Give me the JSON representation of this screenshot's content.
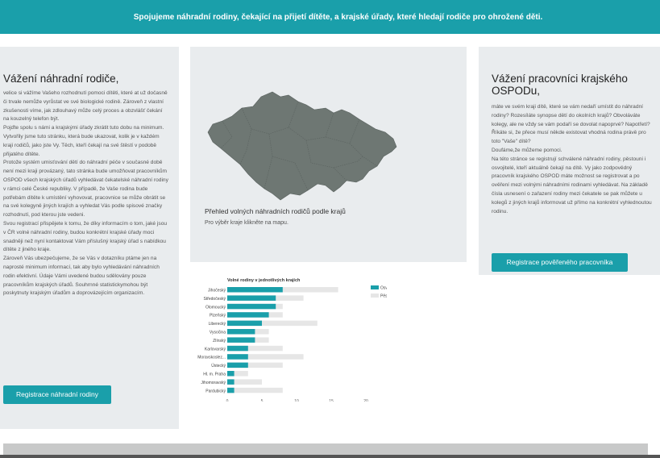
{
  "banner": {
    "text": "Spojujeme náhradní rodiny, čekající na přijetí dítěte, a krajské úřady, které hledají rodiče pro ohrožené děti."
  },
  "parents": {
    "title": "Vážení náhradní rodiče,",
    "paragraphs": [
      "velice si vážíme Vašeho rozhodnutí pomoci dítěti, které at už dočasně či trvale nemůže vyrůstat ve své biologické rodině. Zároveň z vlastní zkušenosti víme, jak zdlouhavý může celý proces a obzvlášť čekání na kouzelný telefon být.",
      "Pojďte spolu s námi a krajskými úřady zkrátit tuto dobu na minimum.",
      "Vytvořily jsme tuto stránku, která bude ukazovat, kolik je v každém kraji rodičů, jako jste Vy. Těch, kteří čekají na své štěstí v podobě přijatého dítěte.",
      "Protože systém umisťování dětí do náhradní péče v současné době není mezi kraji provázaný, tato stránka bude umožňovat pracovníkům OSPOD všech krajských úřadů vyhledávat čekatelské náhradní rodiny v rámci celé České republiky. V případě, že Vaše rodina bude potřebám dítěte k umístění vyhovovat, pracovnice se může obrátit se na své kolegyně jiných krajích a vyhledat Vás podle spisové značky rozhodnutí, pod kterou jste vedeni.",
      "Svou registrací přispějete k tomu, že díky informacím o tom, jaké jsou v ČR volné náhradní rodiny, budou konkrétní krajské úřady moci snadněji než nyní kontaktovat Vám příslušný krajský úřad s nabídkou dítěte z jiného kraje.",
      "Zároveň Vás ubezpečujeme, že se Vás v dotazníku ptáme jen na naprosté minimum informací, tak aby bylo vyhledávání náhradních rodin efektivní. Údaje Vámi uvedené budou sdělovány pouze pracovníkům krajských úřadů. Souhrnné statistickymohou být poskytnuty krajským úřadům a doprovázejícím organizacím."
    ],
    "button": "Registrace náhradní rodiny"
  },
  "map": {
    "title": "Přehled volných náhradních rodičů podle krajů",
    "subtitle": "Pro výběr kraje klikněte na mapu.",
    "fill_color": "#6e7773"
  },
  "officers": {
    "title": "Vážení pracovníci krajského OSPODu,",
    "paragraphs": [
      "máte ve svém kraji dítě, které se vám nedaří umístit do náhradní rodiny? Rozesíláte synopse dětí do okolních krajů? Obvoláváte kolegy, ale ne vždy se vám podaří se dovolat napoprvé? Napotřetí? Říkáte si, že přece musí někde existovat vhodná rodina právě pro toto \"Vaše\" dítě?",
      "Doufáme,že můžeme pomoci.",
      "Na této stránce se registrují schválené náhradní rodiny, pěstouni i osvojitelé, kteří aktuálně čekají na dítě. Vy jako zodpovědný pracovník krajského OSPOD máte možnost se registrovat a po ověření mezi volnými náhradními rodinami vyhledávat. Na základě čísla usnesení o zařazení rodiny mezi čekatele se pak můžete u kolegů z jiných krajů informovat už přímo na konkrétní vyhlednoutou rodinu."
    ],
    "button": "Registrace pověřeného pracovníka"
  },
  "chart_data": {
    "type": "bar",
    "orientation": "horizontal",
    "stacked": false,
    "title": "Volné rodiny v jednotlivých krajích",
    "categories": [
      "Jihočeský",
      "Středočeský",
      "Olomoucký",
      "Plzeňský",
      "Liberecký",
      "Vysočina",
      "Zlínský",
      "Karlovarský",
      "Moravskoslez...",
      "Ústecký",
      "Hl. m. Praha",
      "Jihomoravský",
      "Pardubický"
    ],
    "series": [
      {
        "name": "Osvojitelé",
        "color": "#1a9faa",
        "values": [
          8,
          7,
          7,
          6,
          5,
          4,
          4,
          3,
          3,
          3,
          1,
          1,
          1
        ]
      },
      {
        "name": "Pěstouni",
        "color": "#e6e6e6",
        "values": [
          16,
          11,
          8,
          8,
          13,
          6,
          6,
          8,
          11,
          8,
          3,
          5,
          8
        ]
      }
    ],
    "xticks": [
      0,
      5,
      10,
      15,
      20
    ],
    "xlim": [
      0,
      20
    ],
    "legend_position": "right"
  }
}
